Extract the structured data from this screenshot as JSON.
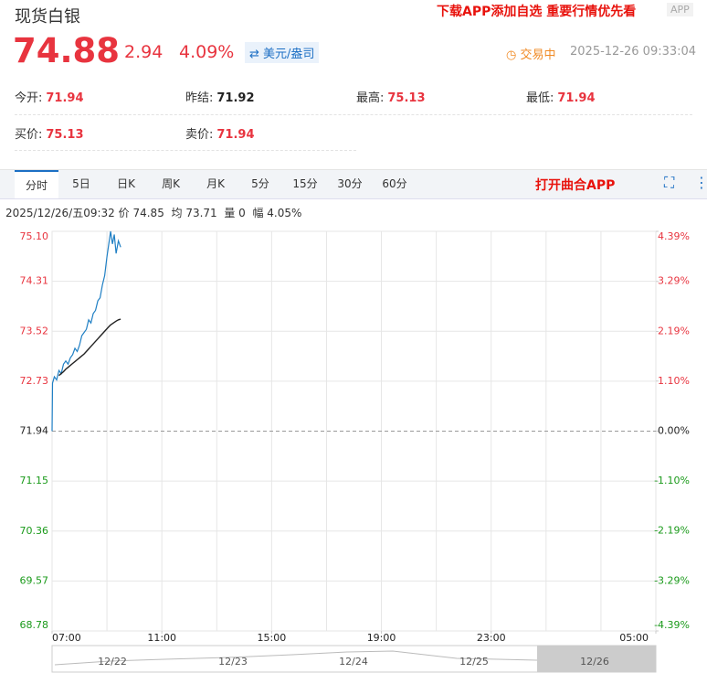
{
  "header": {
    "title": "现货白银",
    "promo": "下载APP添加自选 重要行情优先看",
    "app_badge": "APP"
  },
  "quote": {
    "price": 74.88,
    "change": 2.94,
    "change_pct": "4.09%",
    "unit": "美元/盎司",
    "status": "交易中",
    "time": "2025-12-26 09:33:04"
  },
  "stats": [
    {
      "label": "今开:",
      "value": 71.94
    },
    {
      "label": "昨结:",
      "value": 71.92
    },
    {
      "label": "最高:",
      "value": 75.13
    },
    {
      "label": "最低:",
      "value": 71.94
    },
    {
      "label": "买价:",
      "value": 75.13
    },
    {
      "label": "卖价:",
      "value": 71.94
    }
  ],
  "tabs": [
    "分时",
    "5日",
    "日K",
    "周K",
    "月K",
    "5分",
    "15分",
    "30分",
    "60分"
  ],
  "open_app": "打开曲合APP",
  "info": {
    "time": "2025/12/26/五09:32",
    "price_label": "价",
    "price": 74.85,
    "avg_label": "均",
    "avg": 73.71,
    "volume_label": "量",
    "volume": 0,
    "range_label": "幅",
    "range": "4.05%"
  },
  "chart_data": {
    "type": "line",
    "x": [
      "07:00",
      "07:01",
      "07:05",
      "07:10",
      "07:15",
      "07:20",
      "07:25",
      "07:30",
      "07:35",
      "07:40",
      "07:45",
      "07:50",
      "07:55",
      "08:00",
      "08:05",
      "08:10",
      "08:15",
      "08:20",
      "08:25",
      "08:30",
      "08:35",
      "08:40",
      "08:45",
      "08:50",
      "08:55",
      "09:00",
      "09:05",
      "09:08",
      "09:12",
      "09:16",
      "09:20",
      "09:25",
      "09:30"
    ],
    "series": [
      {
        "color": "#1f7fc4",
        "values": [
          71.94,
          72.7,
          72.8,
          72.75,
          72.9,
          72.85,
          73.0,
          73.05,
          73.0,
          73.1,
          73.15,
          73.25,
          73.2,
          73.3,
          73.45,
          73.5,
          73.55,
          73.7,
          73.65,
          73.8,
          73.85,
          74.0,
          74.05,
          74.25,
          74.4,
          74.7,
          74.95,
          75.1,
          74.9,
          75.05,
          74.75,
          74.95,
          74.85
        ]
      },
      {
        "color": "#222222",
        "values": [
          null,
          null,
          null,
          null,
          72.82,
          72.85,
          72.88,
          72.92,
          72.95,
          72.98,
          73.01,
          73.04,
          73.07,
          73.1,
          73.13,
          73.16,
          73.2,
          73.24,
          73.28,
          73.32,
          73.36,
          73.4,
          73.44,
          73.48,
          73.52,
          73.56,
          73.6,
          73.62,
          73.64,
          73.66,
          73.68,
          73.7,
          73.71
        ]
      }
    ],
    "xlim": [
      "07:00",
      "05:00"
    ],
    "xticks": [
      "07:00",
      "11:00",
      "15:00",
      "19:00",
      "23:00",
      "05:00"
    ],
    "ylim": [
      68.78,
      75.1
    ],
    "yticks": [
      {
        "value": 75.1,
        "label": "75.10"
      },
      74.31,
      73.52,
      72.73,
      71.94,
      71.15,
      70.36,
      69.57,
      68.78
    ],
    "y2lim": [
      -4.39,
      4.39
    ],
    "y2ticks": [
      {
        "value": 4.39,
        "label": "4.39%"
      },
      {
        "value": 3.29,
        "label": "3.29%"
      },
      {
        "value": 2.19,
        "label": "2.19%"
      },
      {
        "value": 1.1,
        "label": "1.10%"
      },
      {
        "value": 0,
        "label": "0.00%"
      },
      {
        "value": -1.1,
        "label": "-1.10%"
      },
      {
        "value": -2.19,
        "label": "-2.19%"
      },
      {
        "value": -3.29,
        "label": "-3.29%"
      },
      {
        "value": -4.39,
        "label": "-4.39%"
      }
    ],
    "reference": 71.94,
    "grid": true
  },
  "navigator": {
    "dates": [
      "12/22",
      "12/23",
      "12/24",
      "12/25",
      "12/26"
    ]
  }
}
